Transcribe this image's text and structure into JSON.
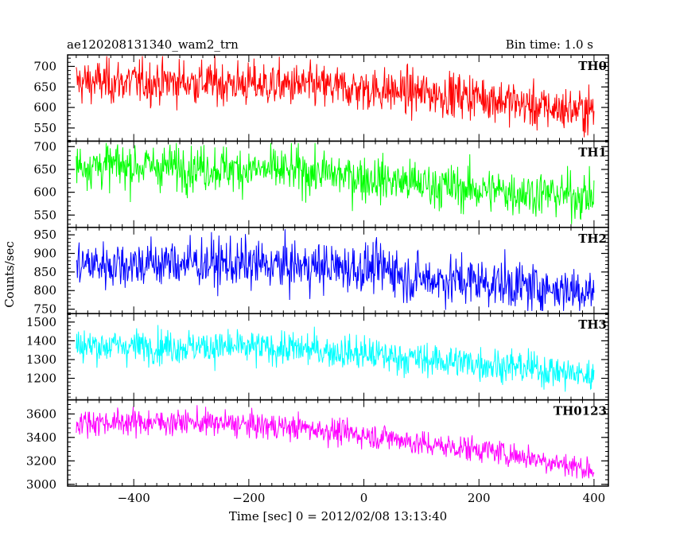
{
  "header": {
    "left_title": "ae120208131340_wam2_trn",
    "right_title": "Bin time: 1.0 s"
  },
  "chart_data": {
    "type": "line",
    "xlabel": "Time [sec] 0 = 2012/02/08 13:13:40",
    "ylabel": "Counts/sec",
    "xlim": [
      -515,
      425
    ],
    "xticks": [
      -400,
      -200,
      0,
      200,
      400
    ],
    "xtick_labels": [
      "−400",
      "−200",
      "0",
      "200",
      "400"
    ],
    "x_range": [
      -500,
      400
    ],
    "bin_time": 1.0,
    "panels": [
      {
        "name": "TH0",
        "color": "#ff0000",
        "ylim": [
          518,
          728
        ],
        "yticks": [
          550,
          600,
          650,
          700
        ],
        "trend": [
          [
            -500,
            662
          ],
          [
            -300,
            662
          ],
          [
            -100,
            652
          ],
          [
            0,
            645
          ],
          [
            100,
            635
          ],
          [
            200,
            628
          ],
          [
            250,
            615
          ],
          [
            300,
            600
          ],
          [
            400,
            592
          ]
        ],
        "noise_sigma": 27,
        "ymin_data": 520,
        "ymax_data": 725
      },
      {
        "name": "TH1",
        "color": "#00ff00",
        "ylim": [
          523,
          712
        ],
        "yticks": [
          550,
          600,
          650,
          700
        ],
        "trend": [
          [
            -500,
            660
          ],
          [
            -300,
            655
          ],
          [
            -100,
            645
          ],
          [
            0,
            632
          ],
          [
            100,
            618
          ],
          [
            200,
            605
          ],
          [
            300,
            598
          ],
          [
            400,
            590
          ]
        ],
        "noise_sigma": 25,
        "ymin_data": 530,
        "ymax_data": 708
      },
      {
        "name": "TH2",
        "color": "#0000ff",
        "ylim": [
          738,
          970
        ],
        "yticks": [
          750,
          800,
          850,
          900,
          950
        ],
        "trend": [
          [
            -500,
            870
          ],
          [
            -300,
            875
          ],
          [
            -100,
            865
          ],
          [
            0,
            860
          ],
          [
            60,
            858
          ],
          [
            65,
            835
          ],
          [
            200,
            825
          ],
          [
            300,
            808
          ],
          [
            400,
            800
          ]
        ],
        "noise_sigma": 33,
        "ymin_data": 745,
        "ymax_data": 965
      },
      {
        "name": "TH3",
        "color": "#00ffff",
        "ylim": [
          1085,
          1545
        ],
        "yticks": [
          1200,
          1300,
          1400,
          1500
        ],
        "trend": [
          [
            -500,
            1375
          ],
          [
            -300,
            1370
          ],
          [
            -100,
            1355
          ],
          [
            0,
            1330
          ],
          [
            100,
            1300
          ],
          [
            200,
            1280
          ],
          [
            300,
            1250
          ],
          [
            400,
            1210
          ]
        ],
        "noise_sigma": 45,
        "ymin_data": 1120,
        "ymax_data": 1540
      },
      {
        "name": "TH0123",
        "color": "#ff00ff",
        "ylim": [
          2985,
          3720
        ],
        "yticks": [
          3000,
          3200,
          3400,
          3600
        ],
        "trend": [
          [
            -500,
            3530
          ],
          [
            -300,
            3530
          ],
          [
            -100,
            3480
          ],
          [
            0,
            3420
          ],
          [
            60,
            3390
          ],
          [
            100,
            3340
          ],
          [
            200,
            3300
          ],
          [
            300,
            3220
          ],
          [
            400,
            3120
          ]
        ],
        "noise_sigma": 55,
        "ymin_data": 3050,
        "ymax_data": 3715
      }
    ]
  }
}
